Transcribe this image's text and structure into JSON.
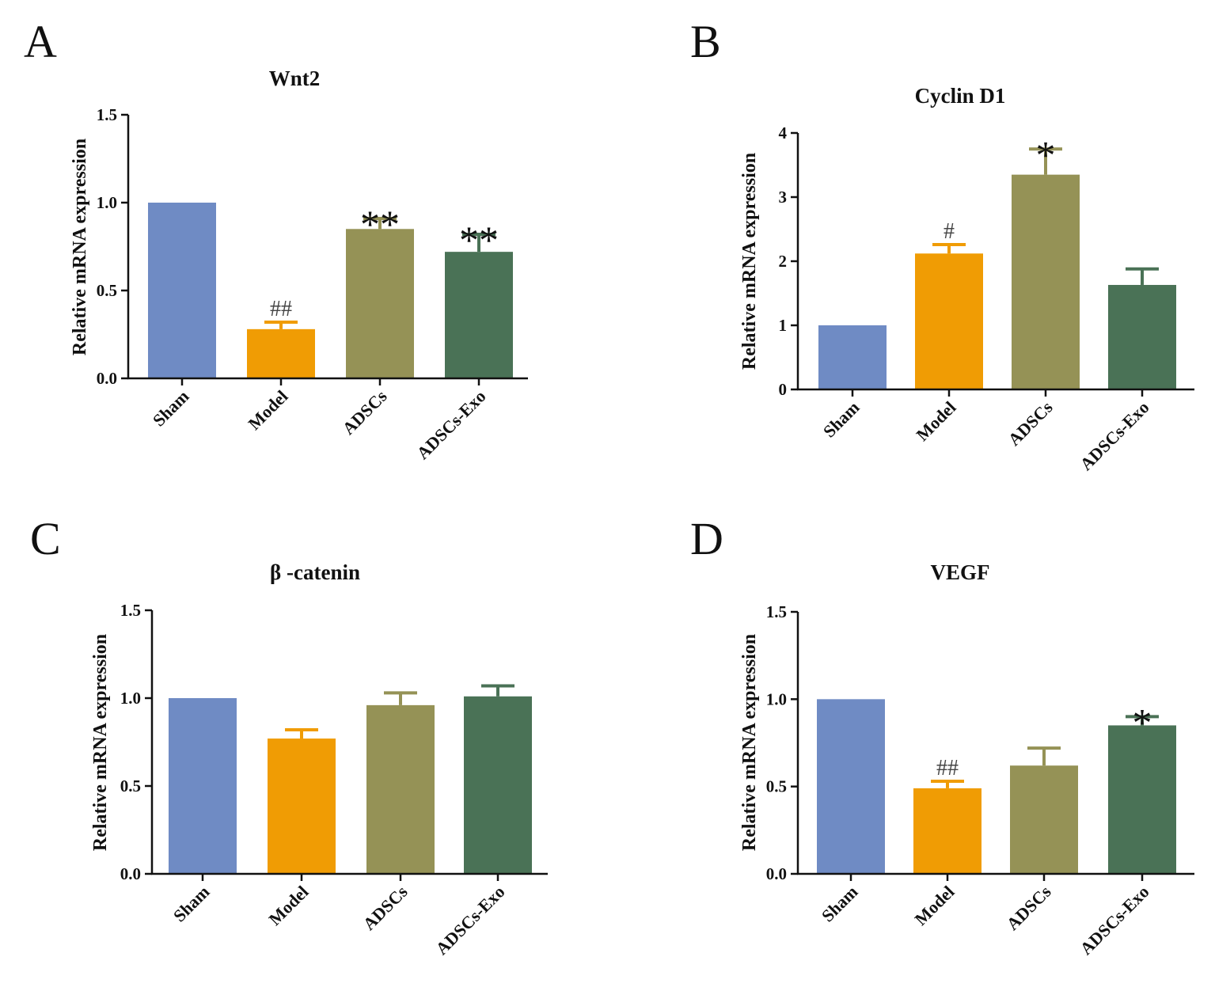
{
  "figure": {
    "panel_letters": [
      "A",
      "B",
      "C",
      "D"
    ],
    "colors": {
      "Sham": "#6f8bc4",
      "Model": "#f09c04",
      "ADSCs": "#959256",
      "ADSCs-Exo": "#4a7256",
      "axis": "#111111"
    }
  },
  "chart_data": [
    {
      "type": "bar",
      "panel": "A",
      "title": "Wnt2",
      "ylabel": "Relative mRNA expression",
      "xlabel": "",
      "categories": [
        "Sham",
        "Model",
        "ADSCs",
        "ADSCs-Exo"
      ],
      "values": [
        1.0,
        0.28,
        0.85,
        0.72
      ],
      "errors": [
        0.0,
        0.04,
        0.06,
        0.1
      ],
      "significance": [
        "",
        "##",
        "**",
        "**"
      ],
      "ylim": [
        0,
        1.5
      ],
      "yticks": [
        0.0,
        0.5,
        1.0,
        1.5
      ],
      "ytick_labels": [
        "0.0",
        "0.5",
        "1.0",
        "1.5"
      ],
      "grid": false
    },
    {
      "type": "bar",
      "panel": "B",
      "title": "Cyclin D1",
      "ylabel": "Relative mRNA expression",
      "xlabel": "",
      "categories": [
        "Sham",
        "Model",
        "ADSCs",
        "ADSCs-Exo"
      ],
      "values": [
        1.0,
        2.12,
        3.35,
        1.63
      ],
      "errors": [
        0.0,
        0.14,
        0.4,
        0.25
      ],
      "significance": [
        "",
        "#",
        "*",
        ""
      ],
      "ylim": [
        0,
        4
      ],
      "yticks": [
        0,
        1,
        2,
        3,
        4
      ],
      "ytick_labels": [
        "0",
        "1",
        "2",
        "3",
        "4"
      ],
      "grid": false
    },
    {
      "type": "bar",
      "panel": "C",
      "title": "β -catenin",
      "ylabel": "Relative mRNA expression",
      "xlabel": "",
      "categories": [
        "Sham",
        "Model",
        "ADSCs",
        "ADSCs-Exo"
      ],
      "values": [
        1.0,
        0.77,
        0.96,
        1.01
      ],
      "errors": [
        0.0,
        0.05,
        0.07,
        0.06
      ],
      "significance": [
        "",
        "",
        "",
        ""
      ],
      "ylim": [
        0,
        1.5
      ],
      "yticks": [
        0.0,
        0.5,
        1.0,
        1.5
      ],
      "ytick_labels": [
        "0.0",
        "0.5",
        "1.0",
        "1.5"
      ],
      "grid": false
    },
    {
      "type": "bar",
      "panel": "D",
      "title": "VEGF",
      "ylabel": "Relative mRNA expression",
      "xlabel": "",
      "categories": [
        "Sham",
        "Model",
        "ADSCs",
        "ADSCs-Exo"
      ],
      "values": [
        1.0,
        0.49,
        0.62,
        0.85
      ],
      "errors": [
        0.0,
        0.04,
        0.1,
        0.05
      ],
      "significance": [
        "",
        "##",
        "",
        "*"
      ],
      "ylim": [
        0,
        1.5
      ],
      "yticks": [
        0.0,
        0.5,
        1.0,
        1.5
      ],
      "ytick_labels": [
        "0.0",
        "0.5",
        "1.0",
        "1.5"
      ],
      "grid": false
    }
  ]
}
